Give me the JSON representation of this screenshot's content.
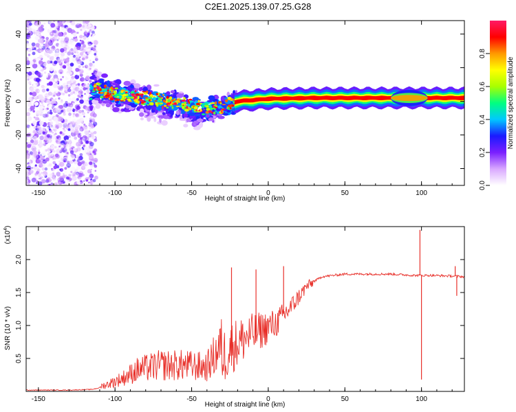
{
  "title": "C2E1.2025.139.07.25.G28",
  "chart_data": [
    {
      "type": "heatmap",
      "name": "spectrogram",
      "xlabel": "Height of straight line (km)",
      "ylabel": "Frequency (Hz)",
      "xlim": [
        -158,
        128
      ],
      "ylim": [
        -50,
        48
      ],
      "xticks": [
        "-150",
        "-100",
        "-50",
        "0",
        "50",
        "100"
      ],
      "yticks": [
        "40",
        "20",
        "0",
        "-20",
        "-40"
      ],
      "colorbar": {
        "label": "Normalized spectral amplitude",
        "range": [
          0,
          1
        ],
        "ticks": [
          "0.0",
          "0.2",
          "0.4",
          "0.6",
          "0.8"
        ],
        "colors": [
          "#ffffff",
          "#d9a8ff",
          "#7a1fff",
          "#1a1aff",
          "#00c8ff",
          "#00ff80",
          "#a8ff00",
          "#ffff00",
          "#ff9900",
          "#ff0000",
          "#ff1a66"
        ]
      },
      "features": {
        "noise_region_x": [
          -158,
          -112
        ],
        "signal_trace": [
          {
            "x": -115,
            "y": 8
          },
          {
            "x": -100,
            "y": 4
          },
          {
            "x": -80,
            "y": 2
          },
          {
            "x": -60,
            "y": -1
          },
          {
            "x": -45,
            "y": -4
          },
          {
            "x": -30,
            "y": -3
          },
          {
            "x": -20,
            "y": 0
          },
          {
            "x": 0,
            "y": 1.5
          },
          {
            "x": 30,
            "y": 2
          },
          {
            "x": 80,
            "y": 2
          },
          {
            "x": 128,
            "y": 2
          }
        ]
      }
    },
    {
      "type": "line",
      "name": "snr",
      "xlabel": "Height of straight line (km)",
      "ylabel": "SNR (10 * v/v)",
      "yscale_label": "(x10",
      "yscale_exp": "4",
      "xlim": [
        -158,
        128
      ],
      "ylim": [
        0,
        2.5
      ],
      "xticks": [
        "-150",
        "-100",
        "-50",
        "0",
        "50",
        "100"
      ],
      "yticks": [
        "0.5",
        "1.0",
        "1.5",
        "2.0"
      ],
      "color": "#e8302a",
      "series_envelope": [
        {
          "x": -158,
          "y": 0.02
        },
        {
          "x": -130,
          "y": 0.02
        },
        {
          "x": -115,
          "y": 0.03
        },
        {
          "x": -105,
          "y": 0.08
        },
        {
          "x": -95,
          "y": 0.15
        },
        {
          "x": -85,
          "y": 0.25
        },
        {
          "x": -70,
          "y": 0.3
        },
        {
          "x": -55,
          "y": 0.3
        },
        {
          "x": -40,
          "y": 0.28
        },
        {
          "x": -30,
          "y": 0.55
        },
        {
          "x": -25,
          "y": 0.7
        },
        {
          "x": -15,
          "y": 0.85
        },
        {
          "x": -5,
          "y": 0.95
        },
        {
          "x": 5,
          "y": 1.05
        },
        {
          "x": 15,
          "y": 1.3
        },
        {
          "x": 25,
          "y": 1.6
        },
        {
          "x": 35,
          "y": 1.74
        },
        {
          "x": 50,
          "y": 1.78
        },
        {
          "x": 80,
          "y": 1.78
        },
        {
          "x": 95,
          "y": 1.76
        },
        {
          "x": 105,
          "y": 1.76
        },
        {
          "x": 120,
          "y": 1.75
        },
        {
          "x": 128,
          "y": 1.74
        }
      ],
      "spikes": [
        {
          "x": -24,
          "y": 1.88
        },
        {
          "x": -8,
          "y": 1.85
        },
        {
          "x": 10,
          "y": 1.9
        },
        {
          "x": 99,
          "y": 2.45
        },
        {
          "x": 100,
          "y": 0.18
        },
        {
          "x": 122,
          "y": 1.9
        },
        {
          "x": 123,
          "y": 1.45
        }
      ]
    }
  ]
}
